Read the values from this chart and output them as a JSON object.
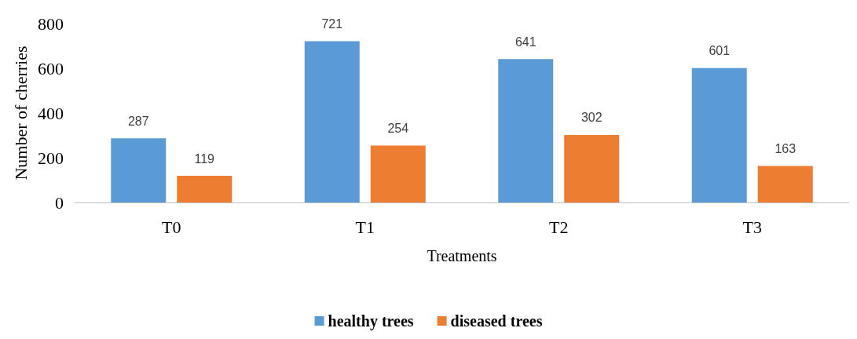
{
  "chart_data": {
    "type": "bar",
    "xlabel": "Treatments",
    "ylabel": "Number of cherries",
    "categories": [
      "T0",
      "T1",
      "T2",
      "T3"
    ],
    "series": [
      {
        "name": "healthy trees",
        "color": "#5b9bd5",
        "values": [
          287,
          721,
          641,
          601
        ]
      },
      {
        "name": "diseased trees",
        "color": "#ed7d31",
        "values": [
          119,
          254,
          302,
          163
        ]
      }
    ],
    "ylim": [
      0,
      800
    ],
    "yticks": [
      0,
      200,
      400,
      600,
      800
    ],
    "grid": false,
    "legend": "bottom",
    "data_labels": true
  }
}
